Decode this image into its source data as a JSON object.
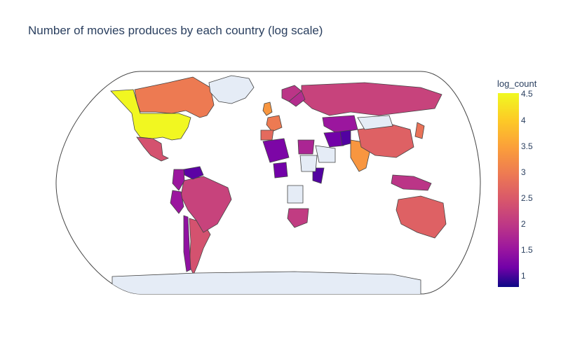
{
  "title": "Number of movies produces by each country (log scale)",
  "colorbar": {
    "title": "log_count",
    "min": 0.78,
    "max": 4.52,
    "ticks": [
      "4.5",
      "4",
      "3.5",
      "3",
      "2.5",
      "2",
      "1.5",
      "1"
    ]
  },
  "colors": {
    "no_data": "#e5ecf6",
    "border": "#444444",
    "ocean": "#ffffff",
    "text": "#2a3f5f"
  },
  "chart_data": {
    "type": "choropleth",
    "projection": "natural earth",
    "z_label": "log_count",
    "regions": [
      {
        "name": "United States",
        "value": 4.5
      },
      {
        "name": "India",
        "value": 3.6
      },
      {
        "name": "United Kingdom",
        "value": 3.6
      },
      {
        "name": "Canada",
        "value": 3.3
      },
      {
        "name": "France",
        "value": 3.3
      },
      {
        "name": "Japan",
        "value": 3.2
      },
      {
        "name": "Spain",
        "value": 3.1
      },
      {
        "name": "China",
        "value": 3.0
      },
      {
        "name": "Australia",
        "value": 3.0
      },
      {
        "name": "Mexico",
        "value": 2.8
      },
      {
        "name": "Argentina",
        "value": 2.8
      },
      {
        "name": "Russia",
        "value": 2.6
      },
      {
        "name": "Brazil",
        "value": 2.6
      },
      {
        "name": "South Africa",
        "value": 2.5
      },
      {
        "name": "Indonesia",
        "value": 2.4
      },
      {
        "name": "Egypt",
        "value": 2.2
      },
      {
        "name": "Colombia",
        "value": 2.0
      },
      {
        "name": "Peru",
        "value": 2.0
      },
      {
        "name": "Kazakhstan",
        "value": 2.0
      },
      {
        "name": "Algeria",
        "value": 1.7
      },
      {
        "name": "Nigeria",
        "value": 1.6
      },
      {
        "name": "Iran",
        "value": 1.6
      },
      {
        "name": "Pakistan",
        "value": 1.3
      },
      {
        "name": "Chile",
        "value": 1.9
      },
      {
        "name": "Venezuela",
        "value": 1.4
      },
      {
        "name": "Kenya",
        "value": 1.3
      },
      {
        "name": "Norway",
        "value": 2.4
      },
      {
        "name": "Sweden",
        "value": 2.3
      },
      {
        "name": "Mongolia",
        "value": null
      },
      {
        "name": "Greenland",
        "value": null
      },
      {
        "name": "Antarctica",
        "value": null
      },
      {
        "name": "Saudi Arabia",
        "value": null
      },
      {
        "name": "Sudan",
        "value": null
      },
      {
        "name": "Angola",
        "value": null
      }
    ]
  }
}
